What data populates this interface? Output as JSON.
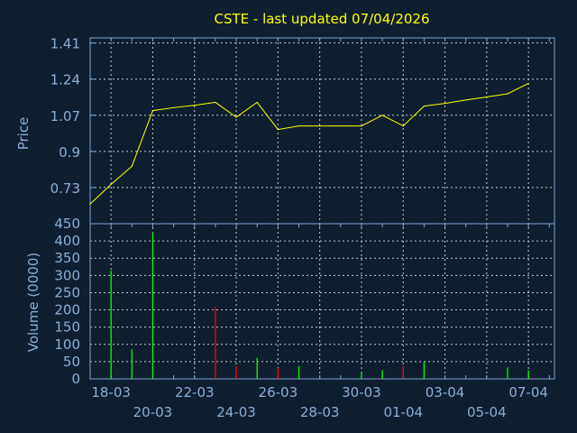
{
  "chart_data": [
    {
      "type": "line",
      "title": "CSTE - last updated 07/04/2026",
      "ylabel": "Price",
      "ylim": [
        0.56,
        1.434
      ],
      "yticks": [
        "0.73",
        "0.9",
        "1.07",
        "1.24",
        "1.41"
      ],
      "grid": true,
      "line_color": "#ffff00",
      "dates": [
        "17-03",
        "18-03",
        "19-03",
        "20-03",
        "21-03",
        "22-03",
        "23-03",
        "24-03",
        "25-03",
        "26-03",
        "27-03",
        "28-03",
        "29-03",
        "30-03",
        "31-03",
        "01-04",
        "02-04",
        "03-04",
        "04-04",
        "05-04",
        "06-04",
        "07-04"
      ],
      "values": [
        0.653,
        0.745,
        0.83,
        1.092,
        1.106,
        1.117,
        1.131,
        1.061,
        1.131,
        1.003,
        1.02,
        1.02,
        1.02,
        1.02,
        1.07,
        1.02,
        1.113,
        1.126,
        1.142,
        1.156,
        1.171,
        1.22
      ]
    },
    {
      "type": "bar",
      "ylabel": "Volume (0000)",
      "ylim": [
        0,
        450
      ],
      "yticks": [
        "0",
        "50",
        "100",
        "150",
        "200",
        "250",
        "300",
        "350",
        "400",
        "450"
      ],
      "xticks": [
        "18-03",
        "20-03",
        "22-03",
        "24-03",
        "26-03",
        "28-03",
        "30-03",
        "01-04",
        "03-04",
        "05-04",
        "07-04"
      ],
      "grid": true,
      "up_color": "#00ff00",
      "down_color": "#ff0000",
      "bars": [
        {
          "date": "18-03",
          "value": 314,
          "direction": "up"
        },
        {
          "date": "19-03",
          "value": 86,
          "direction": "up"
        },
        {
          "date": "20-03",
          "value": 423,
          "direction": "up"
        },
        {
          "date": "23-03",
          "value": 209,
          "direction": "down"
        },
        {
          "date": "24-03",
          "value": 37,
          "direction": "down"
        },
        {
          "date": "25-03",
          "value": 61,
          "direction": "up"
        },
        {
          "date": "26-03",
          "value": 31,
          "direction": "down"
        },
        {
          "date": "27-03",
          "value": 37,
          "direction": "up"
        },
        {
          "date": "30-03",
          "value": 18,
          "direction": "up"
        },
        {
          "date": "31-03",
          "value": 25,
          "direction": "up"
        },
        {
          "date": "01-04",
          "value": 37,
          "direction": "down"
        },
        {
          "date": "02-04",
          "value": 49,
          "direction": "up"
        },
        {
          "date": "06-04",
          "value": 33,
          "direction": "up"
        },
        {
          "date": "07-04",
          "value": 25,
          "direction": "up"
        }
      ]
    }
  ]
}
